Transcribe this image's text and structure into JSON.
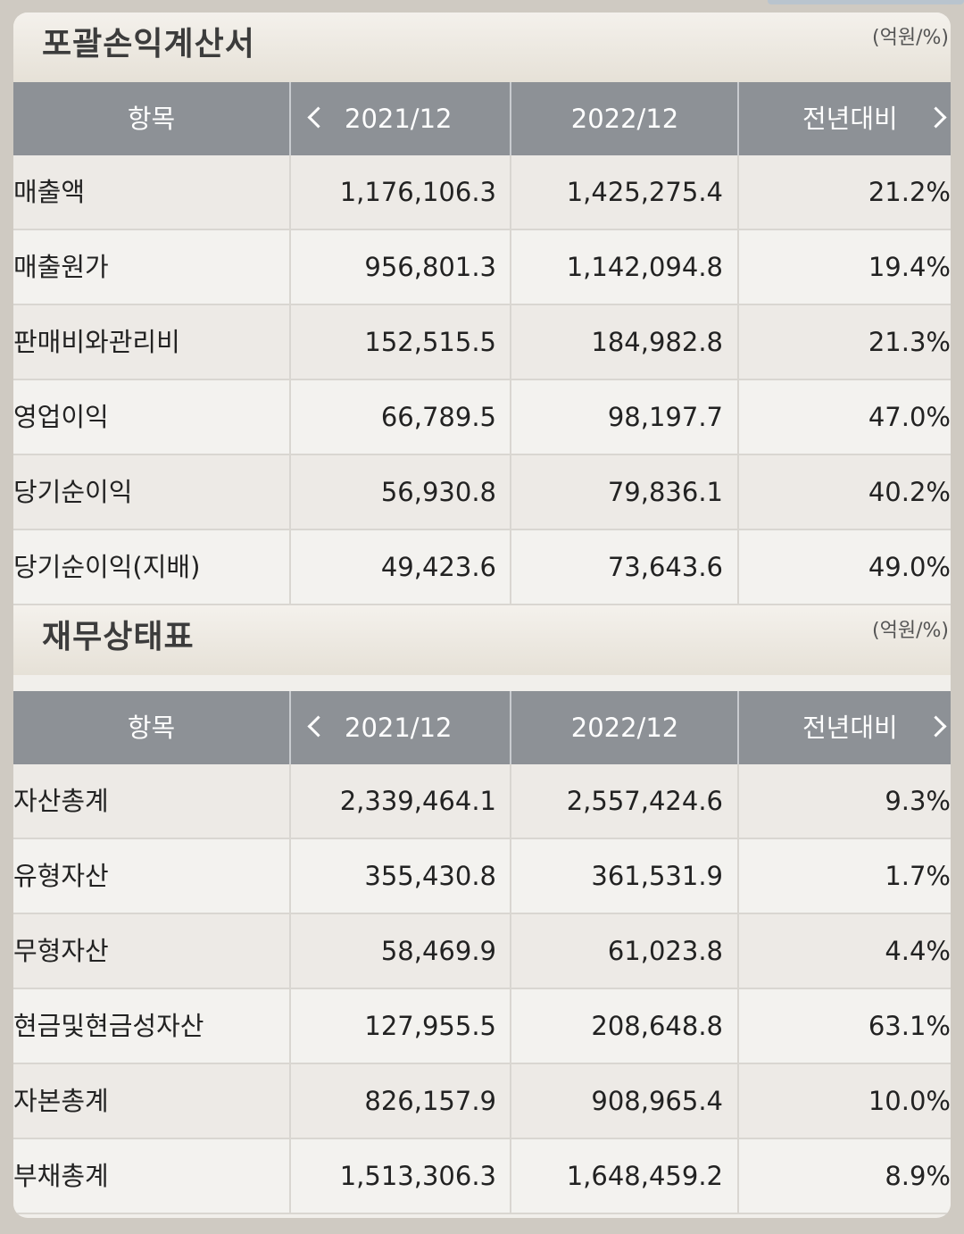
{
  "income_statement": {
    "title": "포괄손익계산서",
    "unit": "(억원/%)",
    "headers": {
      "item": "항목",
      "year1": "2021/12",
      "year2": "2022/12",
      "yoy": "전년대비"
    },
    "rows": [
      {
        "name": "매출액",
        "y1": "1,176,106.3",
        "y2": "1,425,275.4",
        "yoy": "21.2%"
      },
      {
        "name": "매출원가",
        "y1": "956,801.3",
        "y2": "1,142,094.8",
        "yoy": "19.4%"
      },
      {
        "name": "판매비와관리비",
        "y1": "152,515.5",
        "y2": "184,982.8",
        "yoy": "21.3%"
      },
      {
        "name": "영업이익",
        "y1": "66,789.5",
        "y2": "98,197.7",
        "yoy": "47.0%"
      },
      {
        "name": "당기순이익",
        "y1": "56,930.8",
        "y2": "79,836.1",
        "yoy": "40.2%"
      },
      {
        "name": "당기순이익(지배)",
        "y1": "49,423.6",
        "y2": "73,643.6",
        "yoy": "49.0%"
      }
    ]
  },
  "balance_sheet": {
    "title": "재무상태표",
    "unit": "(억원/%)",
    "headers": {
      "item": "항목",
      "year1": "2021/12",
      "year2": "2022/12",
      "yoy": "전년대비"
    },
    "rows": [
      {
        "name": "자산총계",
        "y1": "2,339,464.1",
        "y2": "2,557,424.6",
        "yoy": "9.3%"
      },
      {
        "name": "유형자산",
        "y1": "355,430.8",
        "y2": "361,531.9",
        "yoy": "1.7%"
      },
      {
        "name": "무형자산",
        "y1": "58,469.9",
        "y2": "61,023.8",
        "yoy": "4.4%"
      },
      {
        "name": "현금및현금성자산",
        "y1": "127,955.5",
        "y2": "208,648.8",
        "yoy": "63.1%"
      },
      {
        "name": "자본총계",
        "y1": "826,157.9",
        "y2": "908,965.4",
        "yoy": "10.0%"
      },
      {
        "name": "부채총계",
        "y1": "1,513,306.3",
        "y2": "1,648,459.2",
        "yoy": "8.9%"
      }
    ]
  }
}
